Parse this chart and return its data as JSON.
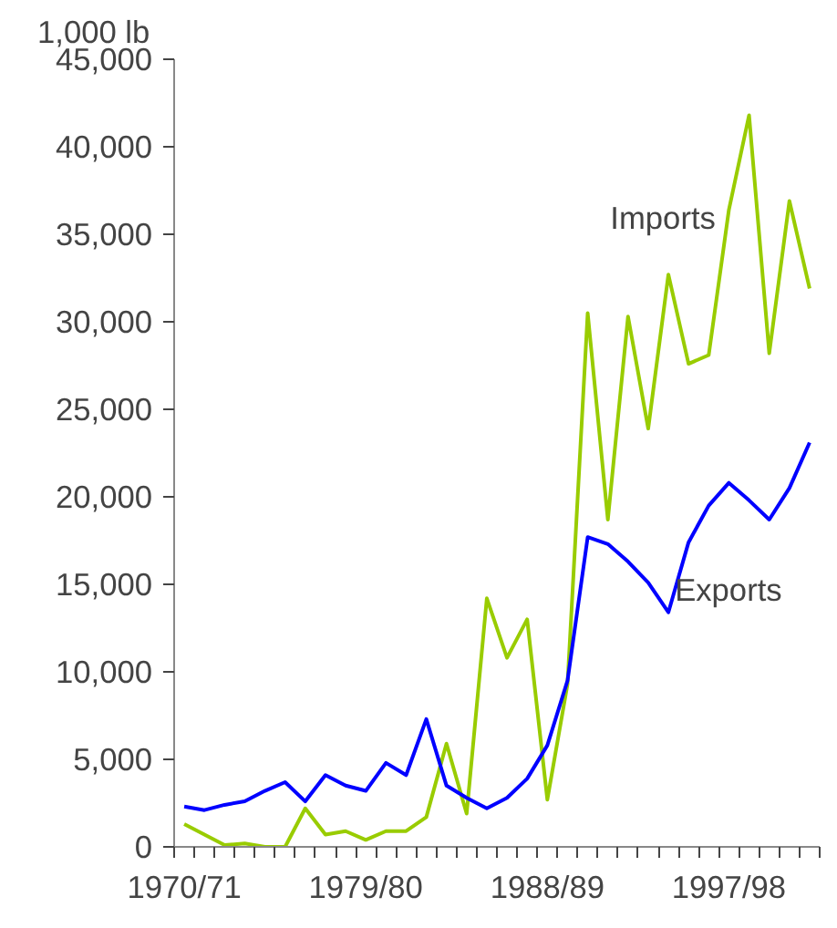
{
  "chart_data": {
    "type": "line",
    "ylabel": "1,000 lb",
    "categories": [
      "1970/71",
      null,
      null,
      null,
      null,
      null,
      null,
      null,
      null,
      "1979/80",
      null,
      null,
      null,
      null,
      null,
      null,
      null,
      null,
      "1988/89",
      null,
      null,
      null,
      null,
      null,
      null,
      null,
      null,
      "1997/98",
      null,
      null,
      null,
      null
    ],
    "series": [
      {
        "name": "Imports",
        "color": "#99cc00",
        "values": [
          1300,
          700,
          100,
          200,
          0,
          0,
          2200,
          700,
          900,
          400,
          900,
          900,
          1700,
          5900,
          1900,
          14200,
          10800,
          13000,
          2700,
          9300,
          30500,
          18700,
          30300,
          23900,
          32700,
          27600,
          28100,
          36400,
          41800,
          28200,
          36900,
          31900
        ]
      },
      {
        "name": "Exports",
        "color": "#0000ff",
        "values": [
          2300,
          2100,
          2400,
          2600,
          3200,
          3700,
          2600,
          4100,
          3500,
          3200,
          4800,
          4100,
          7300,
          3500,
          2800,
          2200,
          2800,
          3900,
          5800,
          9500,
          17700,
          17300,
          16300,
          15100,
          13400,
          17400,
          19500,
          20800,
          19800,
          18700,
          20500,
          23100
        ]
      }
    ],
    "ylim": [
      0,
      45000
    ],
    "yticks": [
      {
        "value": 0,
        "label": "0"
      },
      {
        "value": 5000,
        "label": "5,000"
      },
      {
        "value": 10000,
        "label": "10,000"
      },
      {
        "value": 15000,
        "label": "15,000"
      },
      {
        "value": 20000,
        "label": "20,000"
      },
      {
        "value": 25000,
        "label": "25,000"
      },
      {
        "value": 30000,
        "label": "30,000"
      },
      {
        "value": 35000,
        "label": "35,000"
      },
      {
        "value": 40000,
        "label": "40,000"
      },
      {
        "value": 45000,
        "label": "45,000"
      }
    ],
    "grid": false,
    "legend": false,
    "marker": "none",
    "line_style": "solid"
  }
}
